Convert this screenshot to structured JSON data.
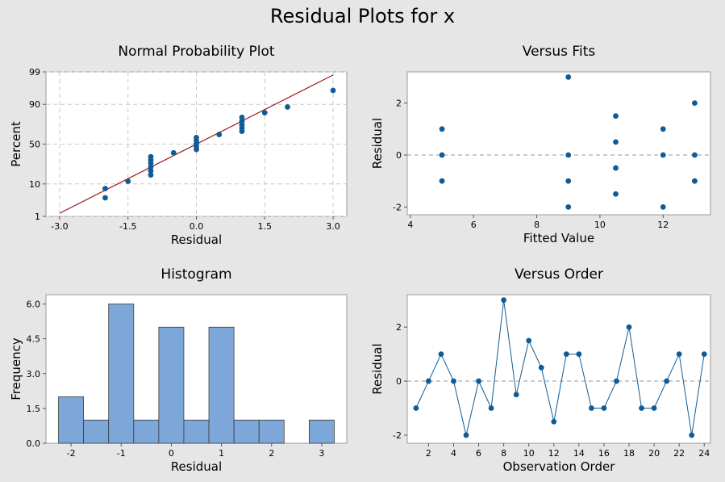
{
  "title": "Residual Plots for x",
  "colors": {
    "point": "#105b95",
    "bar": "#7da7d9",
    "fitline": "#9c1c1c",
    "grid": "#c8c8c8",
    "refline": "#999999"
  },
  "chart_data": [
    {
      "id": "npp",
      "type": "scatter",
      "title": "Normal Probability Plot",
      "xlabel": "Residual",
      "ylabel": "Percent",
      "xlim": [
        -3.3,
        3.3
      ],
      "xticks": [
        -3.0,
        -1.5,
        0.0,
        1.5,
        3.0
      ],
      "xtick_labels": [
        "-3.0",
        "-1.5",
        "0.0",
        "1.5",
        "3.0"
      ],
      "yticks": [
        1,
        10,
        50,
        90,
        99
      ],
      "yscale": "normal-probability",
      "grid": true,
      "fit_line": {
        "x": [
          -3.0,
          3.0
        ],
        "y": [
          1.3,
          98.7
        ]
      },
      "points": [
        {
          "x": -2,
          "y": 4.2
        },
        {
          "x": -2,
          "y": 7.6
        },
        {
          "x": -1.5,
          "y": 11.6
        },
        {
          "x": -1,
          "y": 16.0
        },
        {
          "x": -1,
          "y": 19.5
        },
        {
          "x": -1,
          "y": 23.0
        },
        {
          "x": -1,
          "y": 26.8
        },
        {
          "x": -1,
          "y": 30.5
        },
        {
          "x": -1,
          "y": 34.2
        },
        {
          "x": -0.5,
          "y": 39.0
        },
        {
          "x": 0,
          "y": 43.2
        },
        {
          "x": 0,
          "y": 46.9
        },
        {
          "x": 0,
          "y": 50.8
        },
        {
          "x": 0,
          "y": 54.6
        },
        {
          "x": 0,
          "y": 58.3
        },
        {
          "x": 0.5,
          "y": 62.2
        },
        {
          "x": 1,
          "y": 66.0
        },
        {
          "x": 1,
          "y": 69.6
        },
        {
          "x": 1,
          "y": 73.2
        },
        {
          "x": 1,
          "y": 76.9
        },
        {
          "x": 1,
          "y": 80.5
        },
        {
          "x": 1.5,
          "y": 84.4
        },
        {
          "x": 2,
          "y": 88.4
        },
        {
          "x": 3,
          "y": 95.8
        }
      ]
    },
    {
      "id": "fits",
      "type": "scatter",
      "title": "Versus Fits",
      "xlabel": "Fitted Value",
      "ylabel": "Residual",
      "xlim": [
        3.9,
        13.5
      ],
      "ylim": [
        -2.3,
        3.2
      ],
      "xticks": [
        4,
        6,
        8,
        10,
        12
      ],
      "yticks": [
        -2,
        0,
        2
      ],
      "reference_line": 0,
      "points": [
        {
          "x": 5,
          "y": 1
        },
        {
          "x": 5,
          "y": 0
        },
        {
          "x": 5,
          "y": -1
        },
        {
          "x": 9,
          "y": 3
        },
        {
          "x": 9,
          "y": 0
        },
        {
          "x": 9,
          "y": -1
        },
        {
          "x": 9,
          "y": -2
        },
        {
          "x": 10.5,
          "y": 1.5
        },
        {
          "x": 10.5,
          "y": 0.5
        },
        {
          "x": 10.5,
          "y": -0.5
        },
        {
          "x": 10.5,
          "y": -1.5
        },
        {
          "x": 12,
          "y": 1
        },
        {
          "x": 12,
          "y": 0
        },
        {
          "x": 12,
          "y": -2
        },
        {
          "x": 13,
          "y": 2
        },
        {
          "x": 13,
          "y": 0
        },
        {
          "x": 13,
          "y": -1
        }
      ]
    },
    {
      "id": "hist",
      "type": "bar",
      "title": "Histogram",
      "xlabel": "Residual",
      "ylabel": "Frequency",
      "xlim": [
        -2.5,
        3.5
      ],
      "ylim": [
        0,
        6.4
      ],
      "xticks": [
        -2,
        -1,
        0,
        1,
        2,
        3
      ],
      "yticks": [
        0.0,
        1.5,
        3.0,
        4.5,
        6.0
      ],
      "ytick_labels": [
        "0.0",
        "1.5",
        "3.0",
        "4.5",
        "6.0"
      ],
      "bin_width": 0.5,
      "bin_centers": [
        -2,
        -1.5,
        -1,
        -0.5,
        0,
        0.5,
        1,
        1.5,
        2,
        2.5,
        3
      ],
      "values": [
        2,
        1,
        6,
        1,
        5,
        1,
        5,
        1,
        1,
        0,
        1
      ]
    },
    {
      "id": "order",
      "type": "line",
      "title": "Versus Order",
      "xlabel": "Observation Order",
      "ylabel": "Residual",
      "xlim": [
        0.3,
        24.5
      ],
      "ylim": [
        -2.3,
        3.2
      ],
      "xticks": [
        2,
        4,
        6,
        8,
        10,
        12,
        14,
        16,
        18,
        20,
        22,
        24
      ],
      "yticks": [
        -2,
        0,
        2
      ],
      "reference_line": 0,
      "x": [
        1,
        2,
        3,
        4,
        5,
        6,
        7,
        8,
        9,
        10,
        11,
        12,
        13,
        14,
        15,
        16,
        17,
        18,
        19,
        20,
        21,
        22,
        23,
        24
      ],
      "values": [
        -1,
        0,
        1,
        0,
        -2,
        0,
        -1,
        3,
        -0.5,
        1.5,
        0.5,
        -1.5,
        1,
        1,
        -1,
        -1,
        0,
        2,
        -1,
        -1,
        0,
        1,
        -2,
        1
      ]
    }
  ]
}
